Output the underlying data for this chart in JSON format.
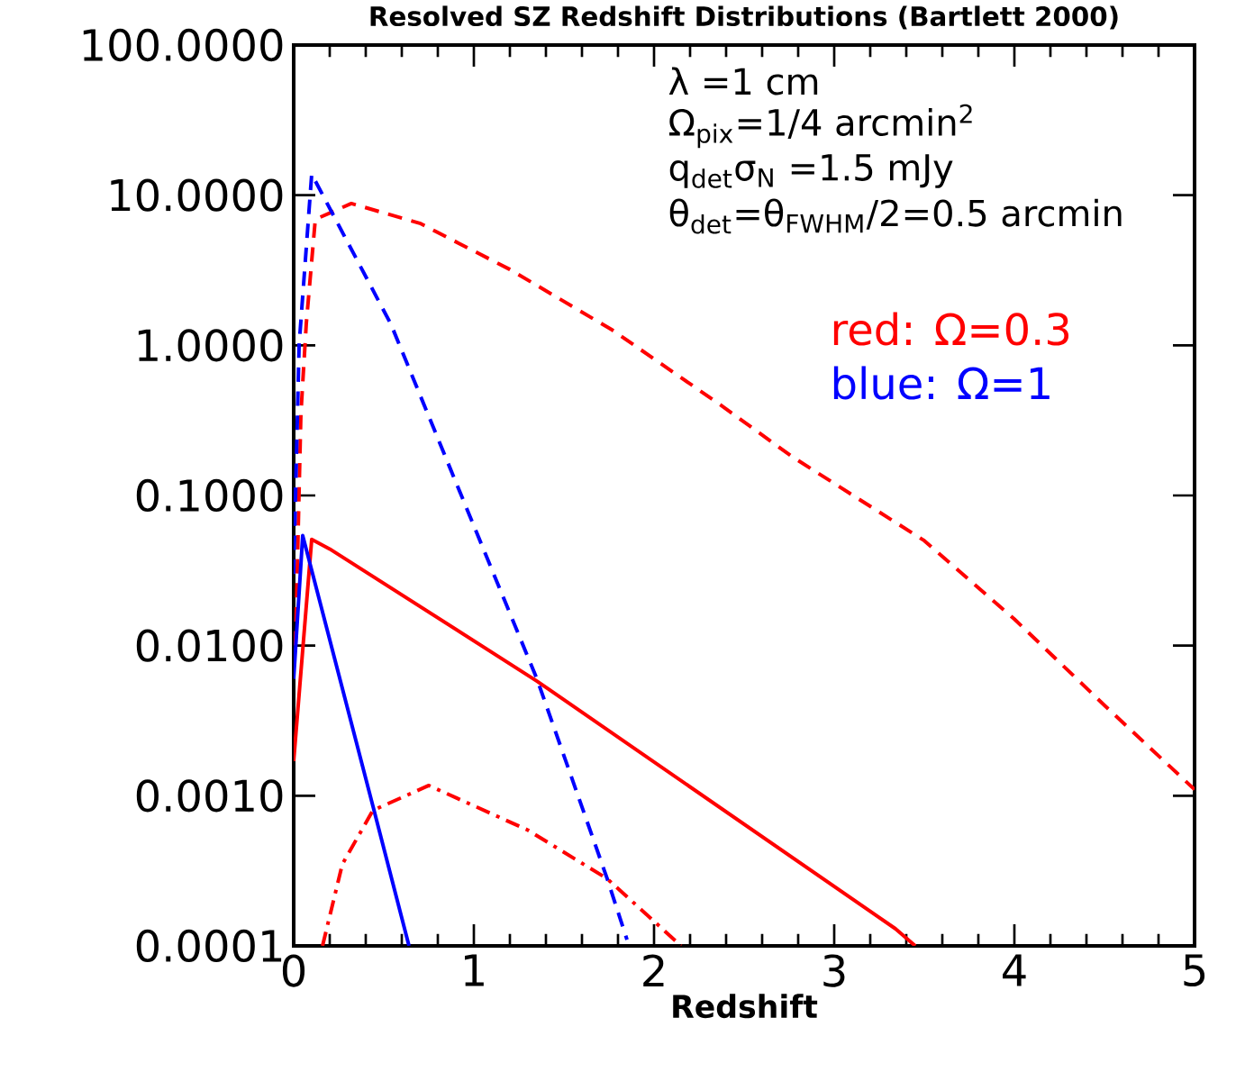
{
  "chart_data": {
    "type": "line",
    "title": "Resolved SZ Redshift Distributions (Bartlett 2000)",
    "xlabel": "Redshift",
    "log": "y",
    "marker": "none",
    "xlim": [
      0,
      5
    ],
    "xticks": [
      0,
      1,
      2,
      3,
      4,
      5
    ],
    "ylim": [
      0.0001,
      100
    ],
    "yticks": [
      {
        "value": 0.0001,
        "label": "0.0001"
      },
      {
        "value": 0.001,
        "label": "0.0010"
      },
      {
        "value": 0.01,
        "label": "0.0100"
      },
      {
        "value": 0.1,
        "label": "0.1000"
      },
      {
        "value": 1,
        "label": "1.0000"
      },
      {
        "value": 10,
        "label": "10.0000"
      },
      {
        "value": 100,
        "label": "100.0000"
      }
    ],
    "annotations": [
      "λ =1 cm",
      "Ω$_{pix}$=1/4 arcmin$^{2}$",
      "q$_{det}$σ$_{N}$ =1.5 mJy",
      "θ$_{det}$=θ$_{FWHM}$/2=0.5 arcmin",
      "red:  Ω=0.3",
      "blue: Ω=1"
    ],
    "series": [
      {
        "color": "#ff0000",
        "line_style": "dashed",
        "x": [
          0.01,
          0.04,
          0.07,
          0.12,
          0.32,
          0.7,
          1.2,
          1.77,
          2.37,
          2.77,
          3.5,
          4,
          4.5,
          5
        ],
        "values": [
          0.01,
          0.35,
          1.4,
          6.9,
          8.8,
          6.5,
          3.2,
          1.26,
          0.4,
          0.18,
          0.05,
          0.015,
          0.004,
          0.0011
        ]
      },
      {
        "color": "#0000ff",
        "line_style": "dashed",
        "x": [
          0.0,
          0.03,
          0.1,
          0.54,
          0.87,
          1.35,
          1.74,
          1.85
        ],
        "values": [
          0.03,
          1.0,
          13.8,
          1.38,
          0.15,
          0.006,
          0.00028,
          0.00011
        ]
      },
      {
        "color": "#ff0000",
        "line_style": "solid",
        "x": [
          0.0,
          0.1,
          0.2,
          1.35,
          3.34,
          3.45
        ],
        "values": [
          0.0017,
          0.051,
          0.044,
          0.0058,
          0.00013,
          0.0001
        ]
      },
      {
        "color": "#0000ff",
        "line_style": "solid",
        "x": [
          0.0,
          0.05,
          0.44,
          0.64
        ],
        "values": [
          0.006,
          0.054,
          0.00085,
          0.0001
        ]
      },
      {
        "color": "#ff0000",
        "line_style": "dashdot",
        "x": [
          0.16,
          0.27,
          0.44,
          0.75,
          1.3,
          1.74,
          2.15
        ],
        "values": [
          0.0001,
          0.00035,
          0.0008,
          0.00117,
          0.00059,
          0.00028,
          0.0001
        ]
      }
    ]
  }
}
